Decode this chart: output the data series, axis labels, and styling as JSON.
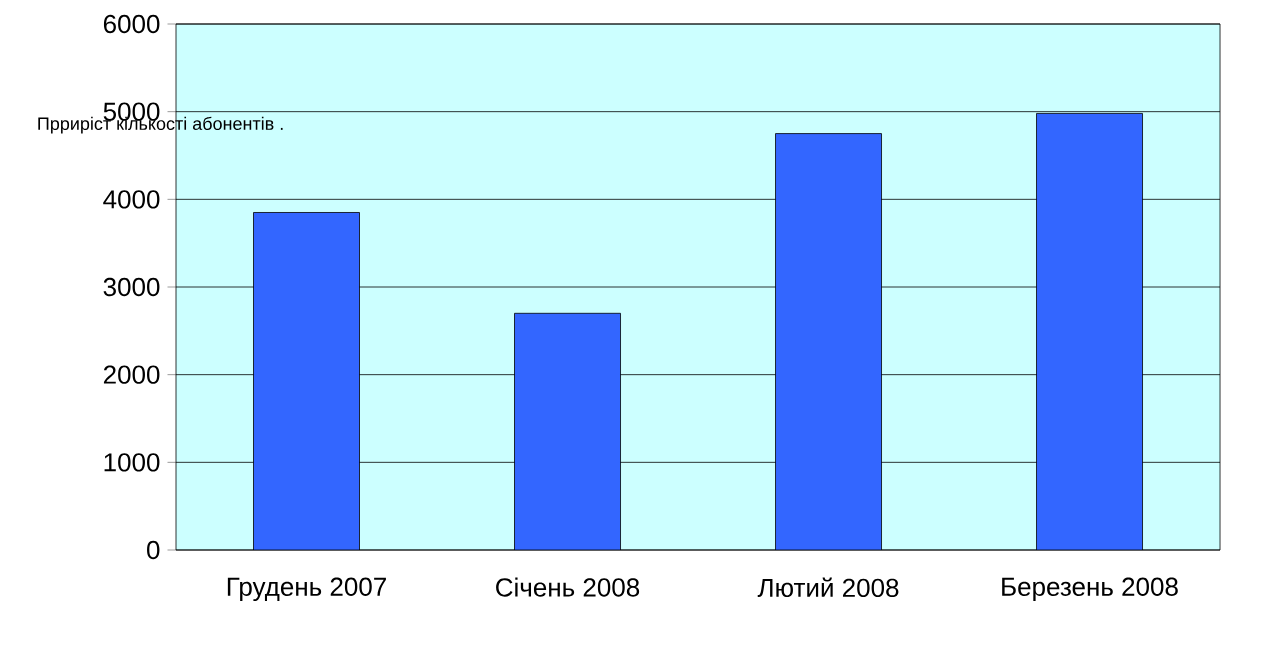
{
  "chart_data": {
    "type": "bar",
    "title": "Прриріст кількості абонентів .",
    "categories": [
      "Грудень 2007",
      "Січень 2008",
      "Лютий 2008",
      "Березень 2008"
    ],
    "values": [
      3850,
      2700,
      4750,
      4980
    ],
    "color": "#3366ff",
    "ylim": [
      0,
      6000
    ],
    "yticks": [
      0,
      1000,
      2000,
      3000,
      4000,
      5000,
      6000
    ],
    "grid": "y"
  }
}
